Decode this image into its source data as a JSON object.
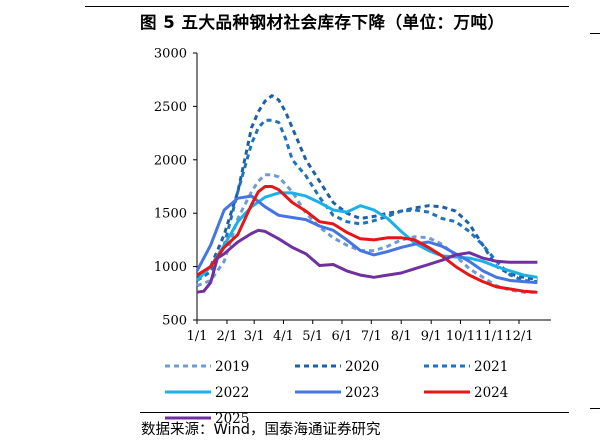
{
  "header": {
    "title": "图 5 五大品种钢材社会库存下降（单位：万吨）"
  },
  "footer": {
    "source": "数据来源：Wind，国泰海通证券研究"
  },
  "chart_data": {
    "type": "line",
    "title": "图 5 五大品种钢材社会库存下降（单位：万吨）",
    "xlabel": "",
    "ylabel": "",
    "ylim": [
      500,
      3000
    ],
    "yticks": [
      500,
      1000,
      1500,
      2000,
      2500,
      3000
    ],
    "week_range": [
      1,
      53
    ],
    "categories": [
      "1/1",
      "2/1",
      "3/1",
      "4/1",
      "5/1",
      "6/1",
      "7/1",
      "8/1",
      "9/1",
      "10/1",
      "11/1",
      "12/1"
    ],
    "category_weeks": [
      1,
      5.4,
      9.4,
      13.7,
      18,
      22.3,
      26.6,
      31,
      35.4,
      39.7,
      44,
      48.3
    ],
    "legend_position": "bottom",
    "series": [
      {
        "name": "2019",
        "color": "#6f9bd1",
        "dash": "5,4",
        "x": [
          1,
          3,
          5,
          7,
          9,
          10,
          11,
          12,
          13,
          15,
          17,
          19,
          21,
          23,
          25,
          27,
          29,
          31,
          33,
          35,
          37,
          39,
          41,
          43,
          45,
          47,
          49,
          51
        ],
        "values": [
          820,
          870,
          1050,
          1450,
          1700,
          1800,
          1860,
          1860,
          1840,
          1700,
          1500,
          1370,
          1270,
          1200,
          1150,
          1150,
          1190,
          1250,
          1280,
          1270,
          1210,
          1100,
          980,
          900,
          820,
          780,
          760,
          760
        ]
      },
      {
        "name": "2020",
        "color": "#1f5fa8",
        "dash": "5,4",
        "x": [
          1,
          3,
          5,
          7,
          8,
          9,
          10,
          11,
          12,
          13,
          14,
          15,
          17,
          19,
          21,
          23,
          25,
          27,
          29,
          31,
          33,
          35,
          37,
          39,
          41,
          43,
          45,
          47,
          49,
          51
        ],
        "values": [
          900,
          1000,
          1300,
          1700,
          2000,
          2300,
          2450,
          2550,
          2600,
          2560,
          2450,
          2300,
          2000,
          1800,
          1600,
          1500,
          1450,
          1470,
          1500,
          1520,
          1550,
          1570,
          1560,
          1520,
          1400,
          1200,
          1000,
          930,
          900,
          880
        ]
      },
      {
        "name": "2021",
        "color": "#1e73be",
        "dash": "5,4",
        "x": [
          1,
          3,
          5,
          7,
          9,
          10,
          11,
          12,
          13,
          14,
          15,
          17,
          19,
          21,
          23,
          25,
          27,
          29,
          31,
          33,
          35,
          37,
          39,
          41,
          43,
          45,
          47,
          49,
          51
        ],
        "values": [
          870,
          950,
          1200,
          1700,
          2150,
          2300,
          2370,
          2370,
          2350,
          2200,
          2000,
          1850,
          1650,
          1480,
          1420,
          1400,
          1430,
          1470,
          1520,
          1530,
          1510,
          1450,
          1420,
          1330,
          1200,
          1050,
          920,
          870,
          860
        ]
      },
      {
        "name": "2022",
        "color": "#1ab0e8",
        "dash": "",
        "x": [
          1,
          3,
          5,
          7,
          9,
          11,
          13,
          15,
          17,
          19,
          21,
          23,
          25,
          27,
          29,
          31,
          33,
          35,
          37,
          39,
          41,
          43,
          45,
          47,
          49,
          51
        ],
        "values": [
          870,
          1000,
          1200,
          1420,
          1560,
          1650,
          1690,
          1690,
          1660,
          1600,
          1530,
          1510,
          1570,
          1530,
          1450,
          1330,
          1220,
          1150,
          1100,
          1090,
          1080,
          1050,
          1000,
          960,
          920,
          900
        ]
      },
      {
        "name": "2023",
        "color": "#4475e0",
        "dash": "",
        "x": [
          1,
          3,
          5,
          7,
          9,
          11,
          13,
          15,
          17,
          19,
          21,
          23,
          25,
          27,
          29,
          31,
          33,
          35,
          37,
          39,
          41,
          43,
          45,
          47,
          49,
          51
        ],
        "values": [
          960,
          1200,
          1530,
          1640,
          1660,
          1560,
          1480,
          1460,
          1440,
          1380,
          1340,
          1250,
          1150,
          1110,
          1140,
          1180,
          1210,
          1230,
          1190,
          1120,
          1050,
          960,
          900,
          870,
          860,
          850
        ]
      },
      {
        "name": "2024",
        "color": "#e81515",
        "dash": "",
        "x": [
          1,
          3,
          5,
          7,
          9,
          10,
          11,
          12,
          13,
          15,
          17,
          19,
          21,
          23,
          25,
          27,
          29,
          31,
          33,
          35,
          37,
          39,
          41,
          43,
          45,
          47,
          49,
          51
        ],
        "values": [
          920,
          1000,
          1180,
          1300,
          1580,
          1700,
          1750,
          1750,
          1720,
          1600,
          1520,
          1420,
          1400,
          1320,
          1260,
          1250,
          1270,
          1270,
          1250,
          1180,
          1100,
          1000,
          920,
          860,
          810,
          790,
          770,
          760
        ]
      },
      {
        "name": "2025",
        "color": "#7030a0",
        "dash": "",
        "x": [
          1,
          2,
          3,
          4,
          5,
          7,
          9,
          10,
          11,
          13,
          15,
          17,
          19,
          21,
          23,
          25,
          27,
          29,
          31,
          33,
          35,
          37,
          39,
          41,
          43,
          45,
          47,
          49,
          51
        ],
        "values": [
          760,
          770,
          850,
          1080,
          1120,
          1230,
          1310,
          1340,
          1330,
          1260,
          1180,
          1120,
          1010,
          1020,
          960,
          920,
          900,
          920,
          940,
          980,
          1020,
          1060,
          1110,
          1130,
          1080,
          1050,
          1040,
          1040,
          1040
        ]
      }
    ]
  }
}
